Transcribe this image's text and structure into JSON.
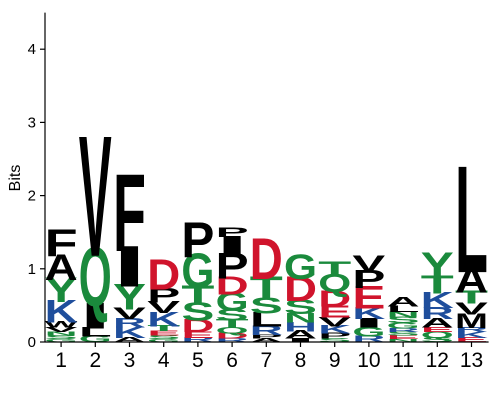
{
  "chart_data": {
    "type": "sequence-logo",
    "ylabel": "Bits",
    "ylim": [
      0,
      4.5
    ],
    "yticks": [
      "0",
      "1",
      "2",
      "3",
      "4"
    ],
    "positions": [
      "1",
      "2",
      "3",
      "4",
      "5",
      "6",
      "7",
      "8",
      "9",
      "10",
      "11",
      "12",
      "13"
    ],
    "colors": {
      "hydrophobic": "#000000",
      "polar": "#1a8a3c",
      "basic": "#1f4e9c",
      "acidic": "#d0142c"
    },
    "letter_groups": {
      "A": "hydrophobic",
      "V": "hydrophobic",
      "L": "hydrophobic",
      "I": "hydrophobic",
      "M": "hydrophobic",
      "F": "hydrophobic",
      "W": "hydrophobic",
      "P": "hydrophobic",
      "G": "polar",
      "S": "polar",
      "T": "polar",
      "Y": "polar",
      "C": "polar",
      "N": "polar",
      "Q": "polar",
      "K": "basic",
      "R": "basic",
      "H": "basic",
      "D": "acidic",
      "E": "acidic"
    },
    "stacks": [
      [
        [
          "G",
          0.04
        ],
        [
          "S",
          0.05
        ],
        [
          "N",
          0.05
        ],
        [
          "V",
          0.06
        ],
        [
          "W",
          0.08
        ],
        [
          "K",
          0.28
        ],
        [
          "Y",
          0.3
        ],
        [
          "A",
          0.32
        ],
        [
          "F",
          0.33
        ]
      ],
      [
        [
          "G",
          0.08
        ],
        [
          "L",
          0.12
        ],
        [
          "I",
          0.32
        ],
        [
          "Q",
          0.72
        ],
        [
          "V",
          1.48
        ]
      ],
      [
        [
          "A",
          0.06
        ],
        [
          "K",
          0.14
        ],
        [
          "R",
          0.12
        ],
        [
          "V",
          0.14
        ],
        [
          "Y",
          0.32
        ],
        [
          "I",
          0.5
        ],
        [
          "F",
          0.95
        ]
      ],
      [
        [
          "G",
          0.04
        ],
        [
          "S",
          0.05
        ],
        [
          "E",
          0.06
        ],
        [
          "T",
          0.07
        ],
        [
          "K",
          0.18
        ],
        [
          "V",
          0.15
        ],
        [
          "P",
          0.18
        ],
        [
          "D",
          0.37
        ]
      ],
      [
        [
          "R",
          0.06
        ],
        [
          "E",
          0.08
        ],
        [
          "D",
          0.16
        ],
        [
          "S",
          0.22
        ],
        [
          "T",
          0.24
        ],
        [
          "G",
          0.42
        ],
        [
          "P",
          0.43
        ]
      ],
      [
        [
          "R",
          0.05
        ],
        [
          "D",
          0.07
        ],
        [
          "Q",
          0.08
        ],
        [
          "T",
          0.1
        ],
        [
          "S",
          0.14
        ],
        [
          "G",
          0.22
        ],
        [
          "D",
          0.22
        ],
        [
          "P",
          0.32
        ],
        [
          "I",
          0.24
        ],
        [
          "P",
          0.12
        ]
      ],
      [
        [
          "A",
          0.05
        ],
        [
          "P",
          0.05
        ],
        [
          "R",
          0.12
        ],
        [
          "L",
          0.18
        ],
        [
          "S",
          0.2
        ],
        [
          "T",
          0.28
        ],
        [
          "D",
          0.5
        ]
      ],
      [
        [
          "I",
          0.05
        ],
        [
          "A",
          0.1
        ],
        [
          "H",
          0.12
        ],
        [
          "N",
          0.12
        ],
        [
          "S",
          0.18
        ],
        [
          "D",
          0.3
        ],
        [
          "G",
          0.3
        ]
      ],
      [
        [
          "S",
          0.05
        ],
        [
          "P",
          0.07
        ],
        [
          "K",
          0.1
        ],
        [
          "V",
          0.12
        ],
        [
          "E",
          0.15
        ],
        [
          "D",
          0.2
        ],
        [
          "Q",
          0.22
        ],
        [
          "T",
          0.18
        ]
      ],
      [
        [
          "R",
          0.08
        ],
        [
          "G",
          0.12
        ],
        [
          "I",
          0.12
        ],
        [
          "K",
          0.15
        ],
        [
          "E",
          0.28
        ],
        [
          "P",
          0.22
        ],
        [
          "V",
          0.2
        ]
      ],
      [
        [
          "N",
          0.04
        ],
        [
          "E",
          0.05
        ],
        [
          "S",
          0.05
        ],
        [
          "R",
          0.05
        ],
        [
          "G",
          0.07
        ],
        [
          "S",
          0.08
        ],
        [
          "N",
          0.07
        ],
        [
          "L",
          0.08
        ],
        [
          "A",
          0.12
        ]
      ],
      [
        [
          "S",
          0.06
        ],
        [
          "Q",
          0.08
        ],
        [
          "E",
          0.06
        ],
        [
          "A",
          0.12
        ],
        [
          "R",
          0.15
        ],
        [
          "K",
          0.2
        ],
        [
          "T",
          0.22
        ],
        [
          "Y",
          0.32
        ]
      ],
      [
        [
          "E",
          0.06
        ],
        [
          "K",
          0.08
        ],
        [
          "R",
          0.06
        ],
        [
          "M",
          0.18
        ],
        [
          "V",
          0.15
        ],
        [
          "T",
          0.16
        ],
        [
          "A",
          0.32
        ],
        [
          "L",
          1.31
        ]
      ]
    ]
  }
}
